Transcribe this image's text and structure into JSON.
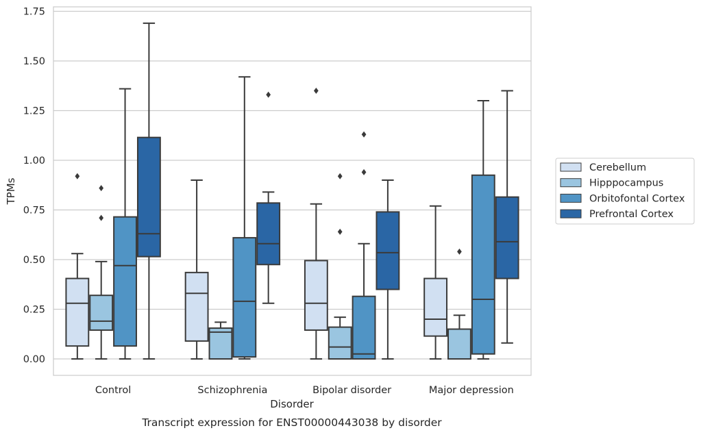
{
  "chart_data": {
    "type": "box",
    "caption": "Transcript expression for ENST00000443038 by disorder",
    "xlabel": "Disorder",
    "ylabel": "TPMs",
    "ylim": [
      -0.08,
      1.77
    ],
    "yticks": [
      "0.00",
      "0.25",
      "0.50",
      "0.75",
      "1.00",
      "1.25",
      "1.50",
      "1.75"
    ],
    "grid": "horizontal",
    "legend_position": "right",
    "categories": [
      "Control",
      "Schizophrenia",
      "Bipolar disorder",
      "Major depression"
    ],
    "series": [
      {
        "name": "Cerebellum",
        "color": "#d1e0f2",
        "boxes": [
          {
            "whislo": 0.0,
            "q1": 0.065,
            "median": 0.28,
            "q3": 0.405,
            "whishi": 0.53,
            "fliers": [
              0.92
            ]
          },
          {
            "whislo": 0.0,
            "q1": 0.09,
            "median": 0.33,
            "q3": 0.435,
            "whishi": 0.9,
            "fliers": []
          },
          {
            "whislo": 0.0,
            "q1": 0.145,
            "median": 0.28,
            "q3": 0.495,
            "whishi": 0.78,
            "fliers": [
              1.35
            ]
          },
          {
            "whislo": 0.0,
            "q1": 0.115,
            "median": 0.2,
            "q3": 0.405,
            "whishi": 0.77,
            "fliers": []
          }
        ]
      },
      {
        "name": "Hipppocampus",
        "color": "#9ac5e0",
        "boxes": [
          {
            "whislo": 0.0,
            "q1": 0.145,
            "median": 0.19,
            "q3": 0.32,
            "whishi": 0.49,
            "fliers": [
              0.86,
              0.71
            ]
          },
          {
            "whislo": 0.0,
            "q1": 0.0,
            "median": 0.135,
            "q3": 0.155,
            "whishi": 0.185,
            "fliers": []
          },
          {
            "whislo": 0.0,
            "q1": 0.0,
            "median": 0.06,
            "q3": 0.16,
            "whishi": 0.21,
            "fliers": [
              0.92,
              0.64
            ]
          },
          {
            "whislo": 0.0,
            "q1": 0.0,
            "median": 0.0,
            "q3": 0.15,
            "whishi": 0.22,
            "fliers": [
              0.54
            ]
          }
        ]
      },
      {
        "name": "Orbitofontal Cortex",
        "color": "#5094c5",
        "boxes": [
          {
            "whislo": 0.0,
            "q1": 0.065,
            "median": 0.47,
            "q3": 0.715,
            "whishi": 1.36,
            "fliers": []
          },
          {
            "whislo": 0.0,
            "q1": 0.01,
            "median": 0.29,
            "q3": 0.61,
            "whishi": 1.42,
            "fliers": []
          },
          {
            "whislo": 0.0,
            "q1": 0.0,
            "median": 0.025,
            "q3": 0.315,
            "whishi": 0.58,
            "fliers": [
              1.13,
              0.94
            ]
          },
          {
            "whislo": 0.0,
            "q1": 0.025,
            "median": 0.3,
            "q3": 0.925,
            "whishi": 1.3,
            "fliers": []
          }
        ]
      },
      {
        "name": "Prefrontal Cortex",
        "color": "#2a66a5",
        "boxes": [
          {
            "whislo": 0.0,
            "q1": 0.515,
            "median": 0.63,
            "q3": 1.115,
            "whishi": 1.69,
            "fliers": []
          },
          {
            "whislo": 0.28,
            "q1": 0.475,
            "median": 0.58,
            "q3": 0.785,
            "whishi": 0.84,
            "fliers": [
              1.33
            ]
          },
          {
            "whislo": 0.0,
            "q1": 0.35,
            "median": 0.535,
            "q3": 0.74,
            "whishi": 0.9,
            "fliers": []
          },
          {
            "whislo": 0.08,
            "q1": 0.405,
            "median": 0.59,
            "q3": 0.815,
            "whishi": 1.35,
            "fliers": []
          }
        ]
      }
    ]
  }
}
